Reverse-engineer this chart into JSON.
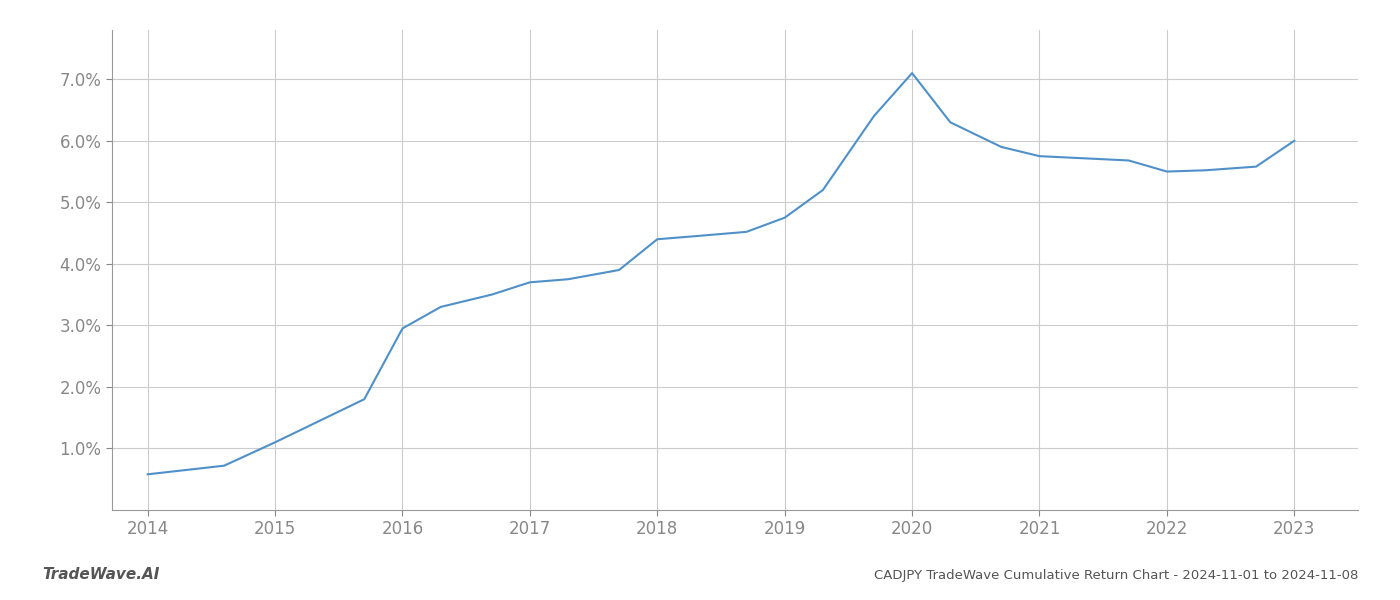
{
  "x": [
    2014.0,
    2014.3,
    2014.6,
    2015.0,
    2015.3,
    2015.7,
    2016.0,
    2016.3,
    2016.7,
    2017.0,
    2017.3,
    2017.7,
    2018.0,
    2018.3,
    2018.7,
    2019.0,
    2019.3,
    2019.7,
    2020.0,
    2020.3,
    2020.7,
    2021.0,
    2021.3,
    2021.7,
    2022.0,
    2022.3,
    2022.7,
    2023.0
  ],
  "y": [
    0.58,
    0.65,
    0.72,
    1.1,
    1.4,
    1.8,
    2.95,
    3.3,
    3.5,
    3.7,
    3.75,
    3.9,
    4.4,
    4.45,
    4.52,
    4.75,
    5.2,
    6.4,
    7.1,
    6.3,
    5.9,
    5.75,
    5.72,
    5.68,
    5.5,
    5.52,
    5.58,
    6.0
  ],
  "line_color": "#5090c8",
  "line_width": 1.5,
  "background_color": "#ffffff",
  "grid_color": "#cccccc",
  "title": "CADJPY TradeWave Cumulative Return Chart - 2024-11-01 to 2024-11-08",
  "watermark": "TradeWave.AI",
  "xlim": [
    2013.72,
    2023.5
  ],
  "ylim": [
    0.0,
    7.8
  ],
  "xticks": [
    2014,
    2015,
    2016,
    2017,
    2018,
    2019,
    2020,
    2021,
    2022,
    2023
  ],
  "yticks": [
    1.0,
    2.0,
    3.0,
    4.0,
    5.0,
    6.0,
    7.0
  ],
  "tick_label_color": "#888888",
  "title_color": "#555555",
  "watermark_color": "#555555",
  "spine_color": "#999999",
  "figsize": [
    14.0,
    6.0
  ],
  "dpi": 100
}
